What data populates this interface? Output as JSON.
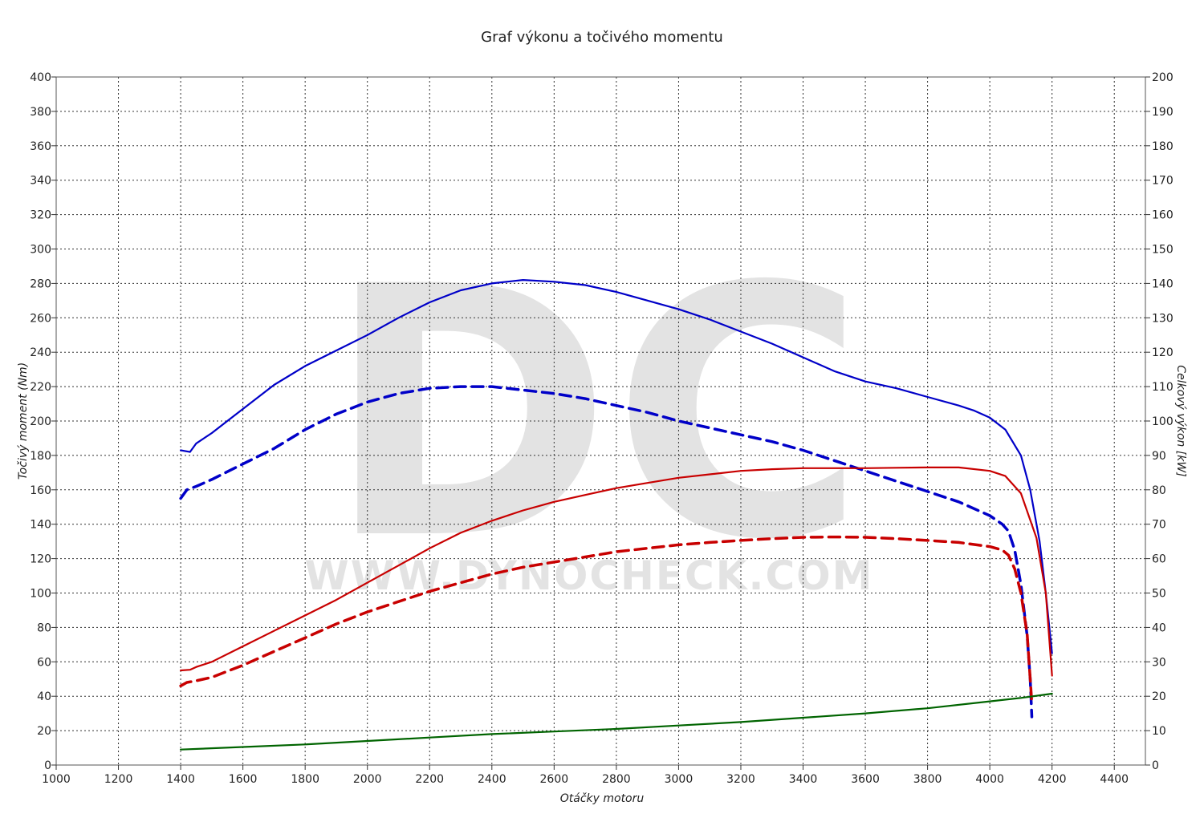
{
  "chart_data": {
    "type": "line",
    "title": "Graf výkonu a točivého momentu",
    "xlabel": "Otáčky motoru",
    "ylabel_left": "Točivý moment (Nm)",
    "ylabel_right": "Celkový výkon [kW]",
    "watermark": {
      "logo": "DC",
      "url": "WWW.DYNOCHECK.COM"
    },
    "xlim": [
      1000,
      4500
    ],
    "ylim_left": [
      0,
      400
    ],
    "ylim_right": [
      0,
      200
    ],
    "x_ticks": [
      1000,
      1200,
      1400,
      1600,
      1800,
      2000,
      2200,
      2400,
      2600,
      2800,
      3000,
      3200,
      3400,
      3600,
      3800,
      4000,
      4200,
      4400
    ],
    "y_left_ticks": [
      0,
      20,
      40,
      60,
      80,
      100,
      120,
      140,
      160,
      180,
      200,
      220,
      240,
      260,
      280,
      300,
      320,
      340,
      360,
      380,
      400
    ],
    "y_right_ticks": [
      0,
      10,
      20,
      30,
      40,
      50,
      60,
      70,
      80,
      90,
      100,
      110,
      120,
      130,
      140,
      150,
      160,
      170,
      180,
      190,
      200
    ],
    "grid": true,
    "series": [
      {
        "color": "#0000c8",
        "style": "solid",
        "axis": "left",
        "points": [
          [
            1400,
            183
          ],
          [
            1430,
            182
          ],
          [
            1450,
            187
          ],
          [
            1500,
            193
          ],
          [
            1550,
            200
          ],
          [
            1600,
            207
          ],
          [
            1700,
            221
          ],
          [
            1800,
            232
          ],
          [
            1900,
            241
          ],
          [
            2000,
            250
          ],
          [
            2100,
            260
          ],
          [
            2200,
            269
          ],
          [
            2300,
            276
          ],
          [
            2400,
            280
          ],
          [
            2500,
            282
          ],
          [
            2600,
            281
          ],
          [
            2700,
            279
          ],
          [
            2800,
            275
          ],
          [
            2900,
            270
          ],
          [
            3000,
            265
          ],
          [
            3100,
            259
          ],
          [
            3200,
            252
          ],
          [
            3300,
            245
          ],
          [
            3400,
            237
          ],
          [
            3500,
            229
          ],
          [
            3600,
            223
          ],
          [
            3700,
            219
          ],
          [
            3800,
            214
          ],
          [
            3900,
            209
          ],
          [
            3950,
            206
          ],
          [
            4000,
            202
          ],
          [
            4050,
            195
          ],
          [
            4100,
            180
          ],
          [
            4130,
            160
          ],
          [
            4160,
            130
          ],
          [
            4180,
            100
          ],
          [
            4200,
            65
          ]
        ]
      },
      {
        "color": "#0000c8",
        "style": "dashed",
        "axis": "left",
        "points": [
          [
            1400,
            155
          ],
          [
            1420,
            160
          ],
          [
            1450,
            162
          ],
          [
            1500,
            166
          ],
          [
            1600,
            175
          ],
          [
            1700,
            184
          ],
          [
            1800,
            195
          ],
          [
            1900,
            204
          ],
          [
            2000,
            211
          ],
          [
            2100,
            216
          ],
          [
            2200,
            219
          ],
          [
            2300,
            220
          ],
          [
            2400,
            220
          ],
          [
            2500,
            218
          ],
          [
            2600,
            216
          ],
          [
            2700,
            213
          ],
          [
            2800,
            209
          ],
          [
            2900,
            205
          ],
          [
            3000,
            200
          ],
          [
            3100,
            196
          ],
          [
            3200,
            192
          ],
          [
            3300,
            188
          ],
          [
            3400,
            183
          ],
          [
            3500,
            177
          ],
          [
            3600,
            171
          ],
          [
            3700,
            165
          ],
          [
            3800,
            159
          ],
          [
            3900,
            153
          ],
          [
            4000,
            145
          ],
          [
            4040,
            140
          ],
          [
            4060,
            136
          ],
          [
            4080,
            125
          ],
          [
            4100,
            105
          ],
          [
            4120,
            75
          ],
          [
            4130,
            50
          ],
          [
            4135,
            28
          ]
        ]
      },
      {
        "color": "#c80000",
        "style": "solid",
        "axis": "right",
        "points": [
          [
            1400,
            27.5
          ],
          [
            1430,
            27.7
          ],
          [
            1450,
            28.5
          ],
          [
            1500,
            30
          ],
          [
            1600,
            34.5
          ],
          [
            1700,
            39
          ],
          [
            1800,
            43.5
          ],
          [
            1900,
            48
          ],
          [
            2000,
            53
          ],
          [
            2100,
            58
          ],
          [
            2200,
            63
          ],
          [
            2300,
            67.5
          ],
          [
            2400,
            71
          ],
          [
            2500,
            74
          ],
          [
            2600,
            76.5
          ],
          [
            2700,
            78.5
          ],
          [
            2800,
            80.5
          ],
          [
            2900,
            82
          ],
          [
            3000,
            83.5
          ],
          [
            3100,
            84.5
          ],
          [
            3200,
            85.5
          ],
          [
            3300,
            86
          ],
          [
            3400,
            86.3
          ],
          [
            3500,
            86.3
          ],
          [
            3600,
            86.3
          ],
          [
            3700,
            86.4
          ],
          [
            3800,
            86.5
          ],
          [
            3900,
            86.5
          ],
          [
            4000,
            85.5
          ],
          [
            4050,
            84
          ],
          [
            4100,
            79
          ],
          [
            4150,
            66
          ],
          [
            4180,
            50
          ],
          [
            4200,
            26
          ]
        ]
      },
      {
        "color": "#c80000",
        "style": "dashed",
        "axis": "right",
        "points": [
          [
            1400,
            23
          ],
          [
            1420,
            24
          ],
          [
            1450,
            24.5
          ],
          [
            1500,
            25.5
          ],
          [
            1600,
            29
          ],
          [
            1700,
            33
          ],
          [
            1800,
            37
          ],
          [
            1900,
            41
          ],
          [
            2000,
            44.5
          ],
          [
            2100,
            47.5
          ],
          [
            2200,
            50.5
          ],
          [
            2300,
            53
          ],
          [
            2400,
            55.5
          ],
          [
            2500,
            57.5
          ],
          [
            2600,
            59
          ],
          [
            2700,
            60.5
          ],
          [
            2800,
            62
          ],
          [
            2900,
            63
          ],
          [
            3000,
            64
          ],
          [
            3100,
            64.7
          ],
          [
            3200,
            65.3
          ],
          [
            3300,
            65.8
          ],
          [
            3400,
            66.2
          ],
          [
            3500,
            66.3
          ],
          [
            3600,
            66.2
          ],
          [
            3700,
            65.8
          ],
          [
            3800,
            65.3
          ],
          [
            3900,
            64.7
          ],
          [
            4000,
            63.5
          ],
          [
            4040,
            62.5
          ],
          [
            4060,
            61
          ],
          [
            4080,
            57
          ],
          [
            4100,
            50
          ],
          [
            4120,
            38
          ],
          [
            4130,
            25
          ],
          [
            4135,
            18
          ]
        ]
      },
      {
        "color": "#006400",
        "style": "solid",
        "axis": "left",
        "points": [
          [
            1400,
            9
          ],
          [
            1600,
            10.5
          ],
          [
            1800,
            12
          ],
          [
            2000,
            14
          ],
          [
            2200,
            16
          ],
          [
            2400,
            18
          ],
          [
            2600,
            19.5
          ],
          [
            2800,
            21
          ],
          [
            3000,
            23
          ],
          [
            3200,
            25
          ],
          [
            3400,
            27.5
          ],
          [
            3600,
            30
          ],
          [
            3800,
            33
          ],
          [
            4000,
            37
          ],
          [
            4100,
            39
          ],
          [
            4200,
            41.5
          ]
        ]
      }
    ]
  }
}
